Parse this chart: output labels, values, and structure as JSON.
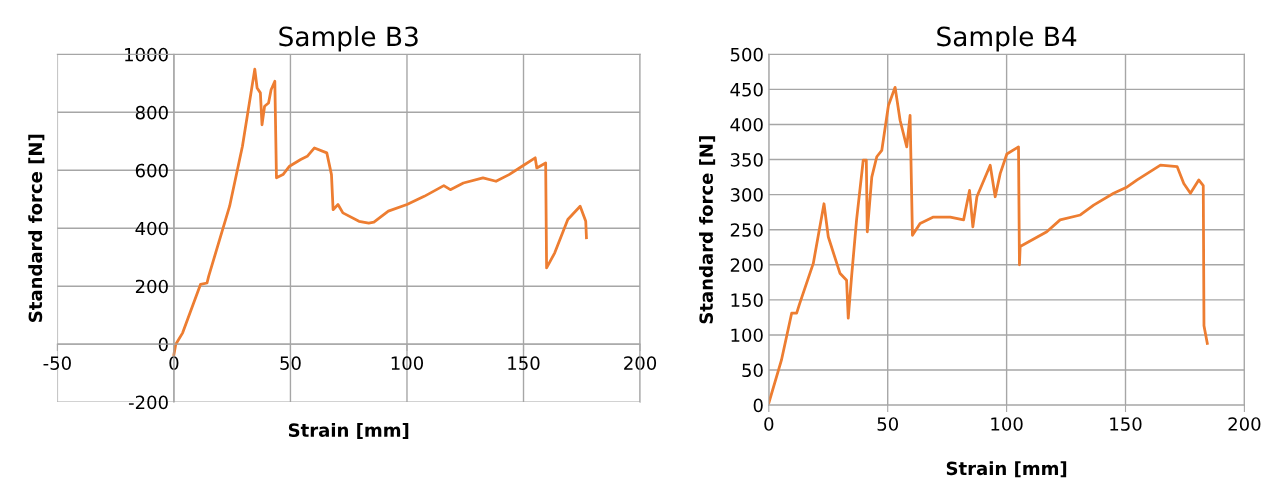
{
  "chart_data": [
    {
      "type": "line",
      "title": "Sample B3",
      "xlabel": "Strain [mm]",
      "ylabel": "Standard force [N]",
      "xlim": [
        -50,
        200
      ],
      "ylim": [
        -200,
        1000
      ],
      "xticks": [
        -50,
        0,
        50,
        100,
        150,
        200
      ],
      "yticks": [
        -200,
        0,
        200,
        400,
        600,
        800,
        1000
      ],
      "grid": true,
      "series": [
        {
          "color": "#ed7d31",
          "x": [
            0,
            0.8,
            3.75,
            11.4,
            14.2,
            14.9,
            23.9,
            29.4,
            34.7,
            35.7,
            37.1,
            37.8,
            38.9,
            40.6,
            41.7,
            43.3,
            44,
            46.8,
            49.6,
            54.4,
            57.2,
            60.3,
            65.6,
            67.6,
            68.3,
            70.4,
            72.5,
            79.4,
            83.6,
            85.8,
            92,
            100,
            107.4,
            115.8,
            118.6,
            124.2,
            132.6,
            138.2,
            143.8,
            149.4,
            155,
            155.7,
            159.5,
            159.9,
            163.4,
            169,
            174.3,
            176.7,
            177
          ],
          "values": [
            -36,
            0,
            39,
            206,
            211,
            234,
            476,
            683,
            949,
            884,
            867,
            757,
            821,
            832,
            878,
            907,
            574,
            585,
            614,
            637,
            648,
            677,
            660,
            585,
            464,
            482,
            453,
            424,
            418,
            421,
            459,
            482,
            510,
            547,
            533,
            556,
            574,
            562,
            585,
            614,
            643,
            608,
            625,
            263,
            315,
            430,
            476,
            424,
            367
          ]
        }
      ]
    },
    {
      "type": "line",
      "title": "Sample B4",
      "xlabel": "Strain [mm]",
      "ylabel": "Standard force [N]",
      "xlim": [
        0,
        200
      ],
      "ylim": [
        0,
        500
      ],
      "xticks": [
        0,
        50,
        100,
        150,
        200
      ],
      "yticks": [
        0,
        50,
        100,
        150,
        200,
        250,
        300,
        350,
        400,
        450,
        500
      ],
      "grid": true,
      "series": [
        {
          "color": "#ed7d31",
          "x": [
            0,
            5.3,
            9.6,
            11.7,
            13,
            18.7,
            23.2,
            25,
            29.9,
            32.7,
            33.4,
            34.8,
            36.9,
            39.7,
            41,
            41.4,
            43.3,
            45.4,
            47.5,
            50.3,
            53.1,
            55.2,
            58,
            59.4,
            60.4,
            63.6,
            69.2,
            76.3,
            81.9,
            84.4,
            85.8,
            87.5,
            93.1,
            95.2,
            97.3,
            100.1,
            105,
            105.4,
            105.7,
            116.9,
            122.5,
            131,
            136.6,
            145,
            150.7,
            154.9,
            164.7,
            171.7,
            174.5,
            177.3,
            180.8,
            182.7,
            183,
            184.4
          ],
          "values": [
            3,
            64,
            131,
            131,
            145,
            202,
            287,
            240,
            188,
            178,
            124,
            183,
            264,
            349,
            349,
            247,
            325,
            354,
            363,
            427,
            453,
            406,
            368,
            413,
            242,
            259,
            268,
            268,
            264,
            306,
            254,
            297,
            342,
            297,
            330,
            358,
            368,
            200,
            226,
            247,
            264,
            271,
            285,
            302,
            311,
            321,
            342,
            340,
            316,
            302,
            321,
            313,
            113,
            88
          ]
        }
      ]
    }
  ]
}
